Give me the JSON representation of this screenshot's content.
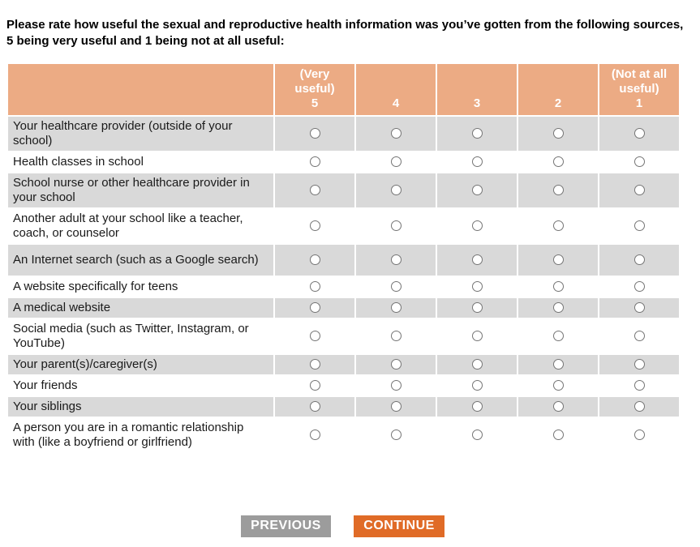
{
  "question": {
    "title": "Please rate how useful the sexual and reproductive health information was you’ve gotten from the following sources, 5 being very useful and 1 being not at all useful:"
  },
  "matrix": {
    "columns": [
      {
        "prefix": "(Very useful)",
        "value": "5"
      },
      {
        "prefix": "",
        "value": "4"
      },
      {
        "prefix": "",
        "value": "3"
      },
      {
        "prefix": "",
        "value": "2"
      },
      {
        "prefix": "(Not at all useful)",
        "value": "1"
      }
    ],
    "rows": [
      {
        "label": "Your healthcare provider (outside of your school)"
      },
      {
        "label": "Health classes in school"
      },
      {
        "label": "School nurse or other healthcare provider in your school"
      },
      {
        "label": "Another adult at your school like a teacher, coach, or counselor"
      },
      {
        "label": "An Internet search (such as a Google search)"
      },
      {
        "label": "A website specifically for teens"
      },
      {
        "label": "A medical website"
      },
      {
        "label": "Social media (such as Twitter, Instagram, or YouTube)"
      },
      {
        "label": "Your parent(s)/caregiver(s)"
      },
      {
        "label": "Your friends"
      },
      {
        "label": "Your siblings"
      },
      {
        "label": "A person you are in a romantic relationship with (like a boyfriend or girlfriend)"
      }
    ]
  },
  "buttons": {
    "previous": "PREVIOUS",
    "continue": "CONTINUE"
  },
  "colors": {
    "header_bg": "#ecab84",
    "alt_row_bg": "#d9d9d9",
    "continue_bg": "#e06b27",
    "previous_bg": "#9c9c9c",
    "header_text": "#ffffff"
  }
}
